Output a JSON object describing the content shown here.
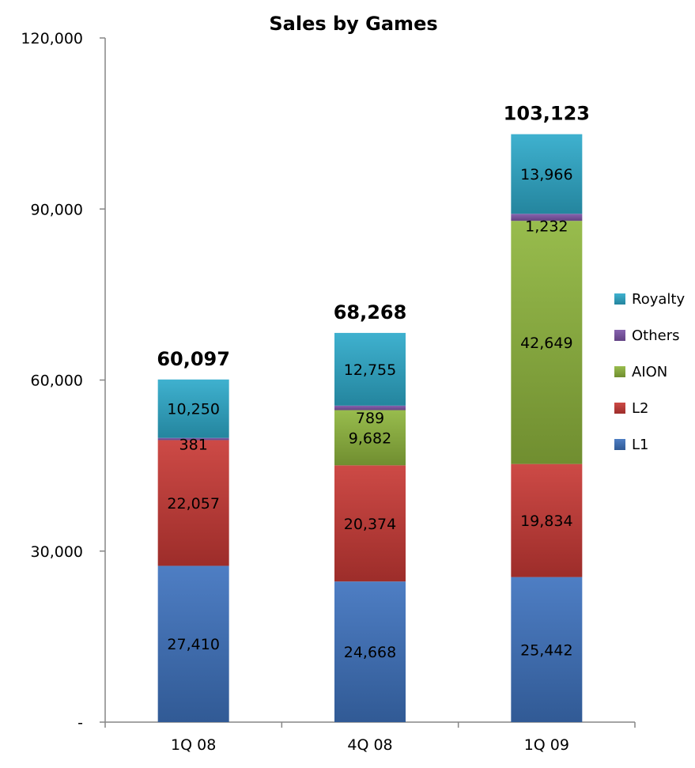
{
  "chart_data": {
    "type": "bar",
    "stacked": true,
    "title": "Sales by Games",
    "xlabel": "",
    "ylabel": "",
    "ylim": [
      0,
      120000
    ],
    "grid": false,
    "legend_position": "right",
    "categories": [
      "1Q 08",
      "4Q 08",
      "1Q 09"
    ],
    "series": [
      {
        "name": "L1",
        "color": "#3f73bf",
        "values": [
          27410,
          24668,
          25442
        ],
        "labels": [
          "27,410",
          "24,668",
          "25,442"
        ]
      },
      {
        "name": "L2",
        "color": "#c93a36",
        "values": [
          22057,
          20374,
          19834
        ],
        "labels": [
          "22,057",
          "20,374",
          "19,834"
        ]
      },
      {
        "name": "AION",
        "color": "#8fb63d",
        "values": [
          0,
          9682,
          42649
        ],
        "labels": [
          "",
          "9,682",
          "42,649"
        ]
      },
      {
        "name": "Others",
        "color": "#7d55a8",
        "values": [
          381,
          789,
          1232
        ],
        "labels": [
          "381",
          "789",
          "1,232"
        ]
      },
      {
        "name": "Royalty",
        "color": "#2eaacb",
        "values": [
          10250,
          12755,
          13966
        ],
        "labels": [
          "10,250",
          "12,755",
          "13,966"
        ]
      }
    ],
    "totals": [
      "60,097",
      "68,268",
      "103,123"
    ],
    "y_ticks": [
      {
        "value": 0,
        "label": "-"
      },
      {
        "value": 30000,
        "label": "30,000"
      },
      {
        "value": 60000,
        "label": "60,000"
      },
      {
        "value": 90000,
        "label": "90,000"
      },
      {
        "value": 120000,
        "label": "120,000"
      }
    ]
  }
}
